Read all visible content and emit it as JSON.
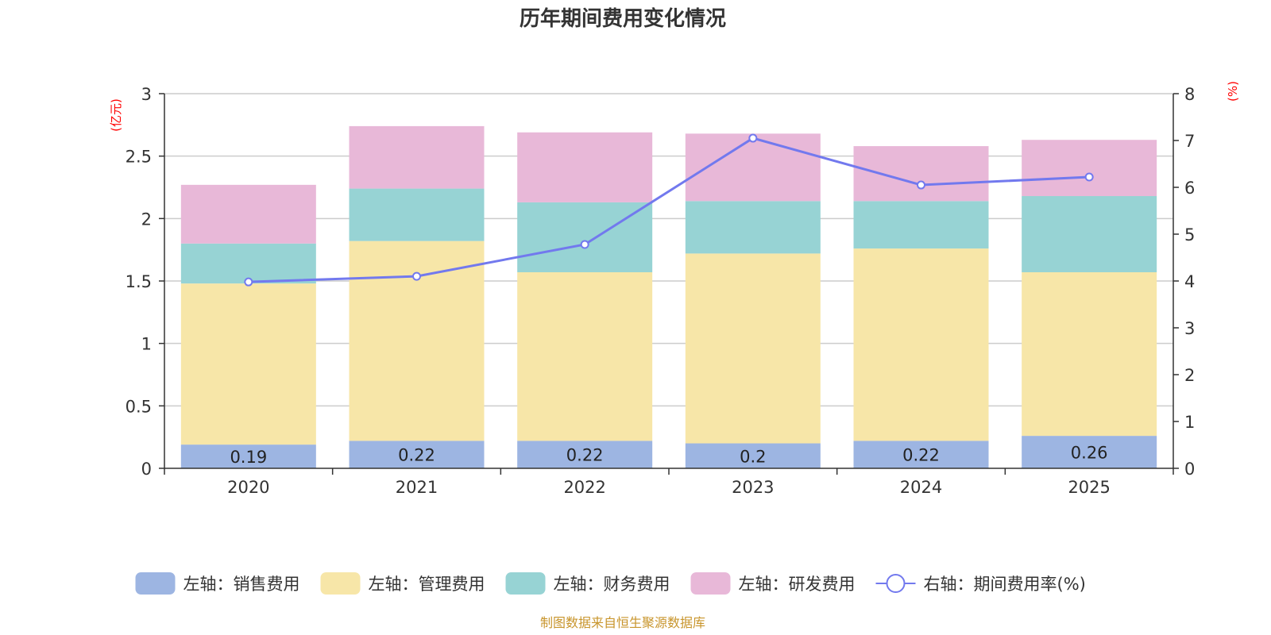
{
  "chart_data": {
    "type": "bar",
    "stacked": true,
    "title": "历年期间费用变化情况",
    "categories": [
      "2020",
      "2021",
      "2022",
      "2023",
      "2024",
      "2025"
    ],
    "y_left": {
      "unit_label": "(亿元)",
      "range": [
        0,
        3
      ],
      "ticks": [
        "0",
        "0.5",
        "1",
        "1.5",
        "2",
        "2.5",
        "3"
      ],
      "tick_values": [
        0,
        0.5,
        1,
        1.5,
        2,
        2.5,
        3
      ]
    },
    "y_right": {
      "unit_label": "(%)",
      "range": [
        0,
        8
      ],
      "ticks": [
        "0",
        "1",
        "2",
        "3",
        "4",
        "5",
        "6",
        "7",
        "8"
      ],
      "tick_values": [
        0,
        1,
        2,
        3,
        4,
        5,
        6,
        7,
        8
      ]
    },
    "grid": true,
    "series": [
      {
        "name": "左轴：销售费用",
        "axis": "left",
        "type": "bar",
        "color": "#9db5e2",
        "values": [
          0.19,
          0.22,
          0.22,
          0.2,
          0.22,
          0.26
        ],
        "labels": [
          "0.19",
          "0.22",
          "0.22",
          "0.2",
          "0.22",
          "0.26"
        ]
      },
      {
        "name": "左轴：管理费用",
        "axis": "left",
        "type": "bar",
        "color": "#f7e6a8",
        "values": [
          1.29,
          1.6,
          1.35,
          1.52,
          1.54,
          1.31
        ]
      },
      {
        "name": "左轴：财务费用",
        "axis": "left",
        "type": "bar",
        "color": "#97d3d4",
        "values": [
          0.32,
          0.42,
          0.56,
          0.42,
          0.38,
          0.61
        ]
      },
      {
        "name": "左轴：研发费用",
        "axis": "left",
        "type": "bar",
        "color": "#e8b8d8",
        "values": [
          0.47,
          0.5,
          0.56,
          0.54,
          0.44,
          0.45
        ]
      },
      {
        "name": "右轴：期间费用率(%)",
        "axis": "right",
        "type": "line",
        "color": "#7279ee",
        "values": [
          3.98,
          4.1,
          4.78,
          7.05,
          6.05,
          6.22
        ]
      }
    ],
    "legend_position": "bottom",
    "source": "制图数据来自恒生聚源数据库"
  }
}
